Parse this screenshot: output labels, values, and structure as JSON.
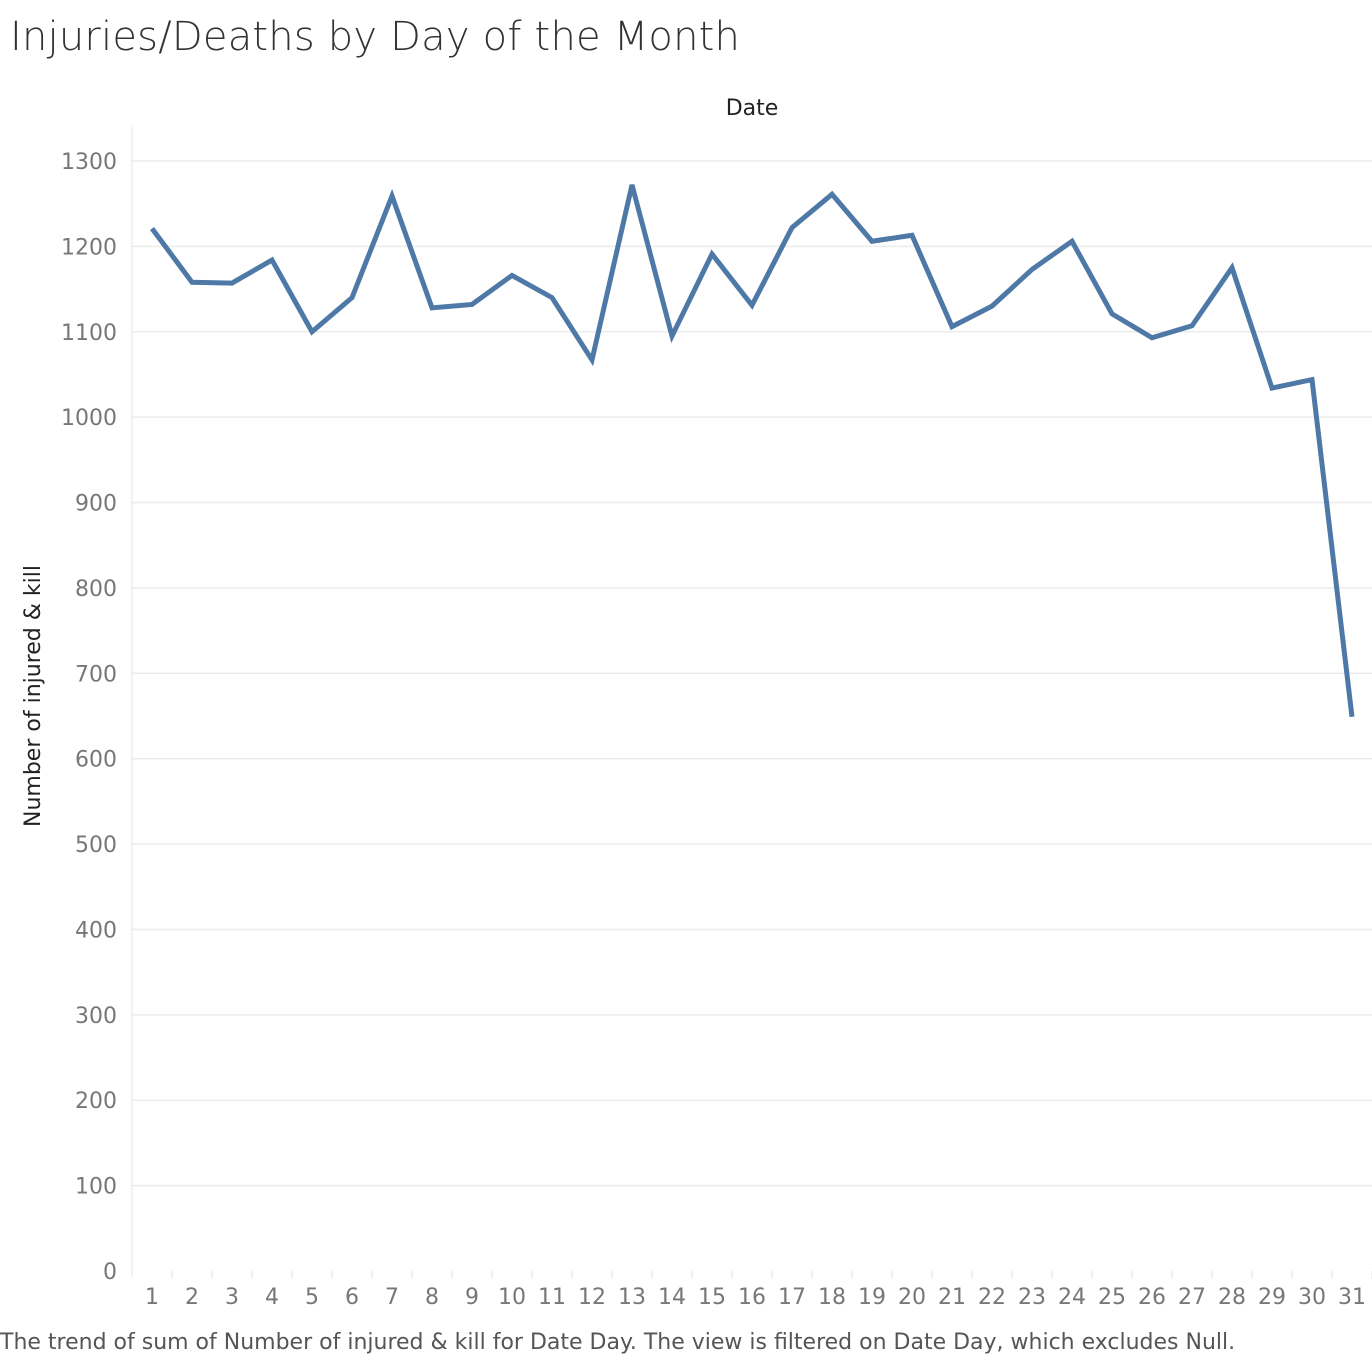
{
  "title": "Injuries/Deaths by Day of the Month",
  "caption": "The trend of sum of Number of injured & kill for Date Day. The view is filtered on Date Day, which excludes Null.",
  "chart_data": {
    "type": "line",
    "title": "Injuries/Deaths by Day of the Month",
    "xlabel": "Date",
    "ylabel": "Number of injured & kill",
    "categories": [
      "1",
      "2",
      "3",
      "4",
      "5",
      "6",
      "7",
      "8",
      "9",
      "10",
      "11",
      "12",
      "13",
      "14",
      "15",
      "16",
      "17",
      "18",
      "19",
      "20",
      "21",
      "22",
      "23",
      "24",
      "25",
      "26",
      "27",
      "28",
      "29",
      "30",
      "31"
    ],
    "series": [
      {
        "values": [
          1221,
          1158,
          1157,
          1184,
          1100,
          1140,
          1259,
          1128,
          1132,
          1166,
          1140,
          1067,
          1272,
          1095,
          1191,
          1131,
          1222,
          1261,
          1206,
          1213,
          1106,
          1130,
          1173,
          1206,
          1121,
          1093,
          1107,
          1175,
          1034,
          1044,
          649
        ]
      }
    ],
    "ylim": [
      0,
      1300
    ],
    "yticks": [
      0,
      100,
      200,
      300,
      400,
      500,
      600,
      700,
      800,
      900,
      1000,
      1100,
      1200,
      1300
    ],
    "grid": true,
    "line_color": "#4e79a7"
  }
}
